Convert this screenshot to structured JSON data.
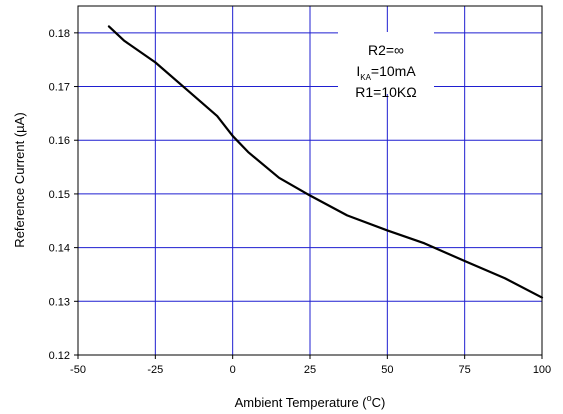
{
  "chart_data": {
    "type": "line",
    "xlabel": "Ambient Temperature (",
    "xlabel_sup": "o",
    "xlabel_tail": "C)",
    "ylabel": "Reference Current (",
    "ylabel_greek": "µ",
    "ylabel_tail": "A)",
    "xlim": [
      -50,
      100
    ],
    "ylim": [
      0.12,
      0.185
    ],
    "grid": true,
    "x_ticks": [
      -50,
      -25,
      0,
      25,
      50,
      75,
      100
    ],
    "x_tick_labels": [
      "-50",
      "-25",
      "0",
      "25",
      "50",
      "75",
      "100"
    ],
    "y_ticks": [
      0.12,
      0.13,
      0.14,
      0.15,
      0.16,
      0.17,
      0.18
    ],
    "y_tick_labels": [
      "0.12",
      "0.13",
      "0.14",
      "0.15",
      "0.16",
      "0.17",
      "0.18"
    ],
    "series": [
      {
        "x": [
          -40,
          -35,
          -25,
          -15,
          -5,
          0,
          5,
          15,
          25,
          37,
          50,
          62,
          75,
          88,
          100
        ],
        "y": [
          0.1812,
          0.1785,
          0.1745,
          0.1695,
          0.1645,
          0.1608,
          0.1578,
          0.153,
          0.1497,
          0.146,
          0.1432,
          0.1408,
          0.1375,
          0.1343,
          0.1307
        ],
        "color": "#000000"
      }
    ],
    "annotations": {
      "line1": "R2=∞",
      "line2_main": "I",
      "line2_sub": "KA",
      "line2_tail": "=10mA",
      "line3": "R1=10KΩ"
    }
  }
}
